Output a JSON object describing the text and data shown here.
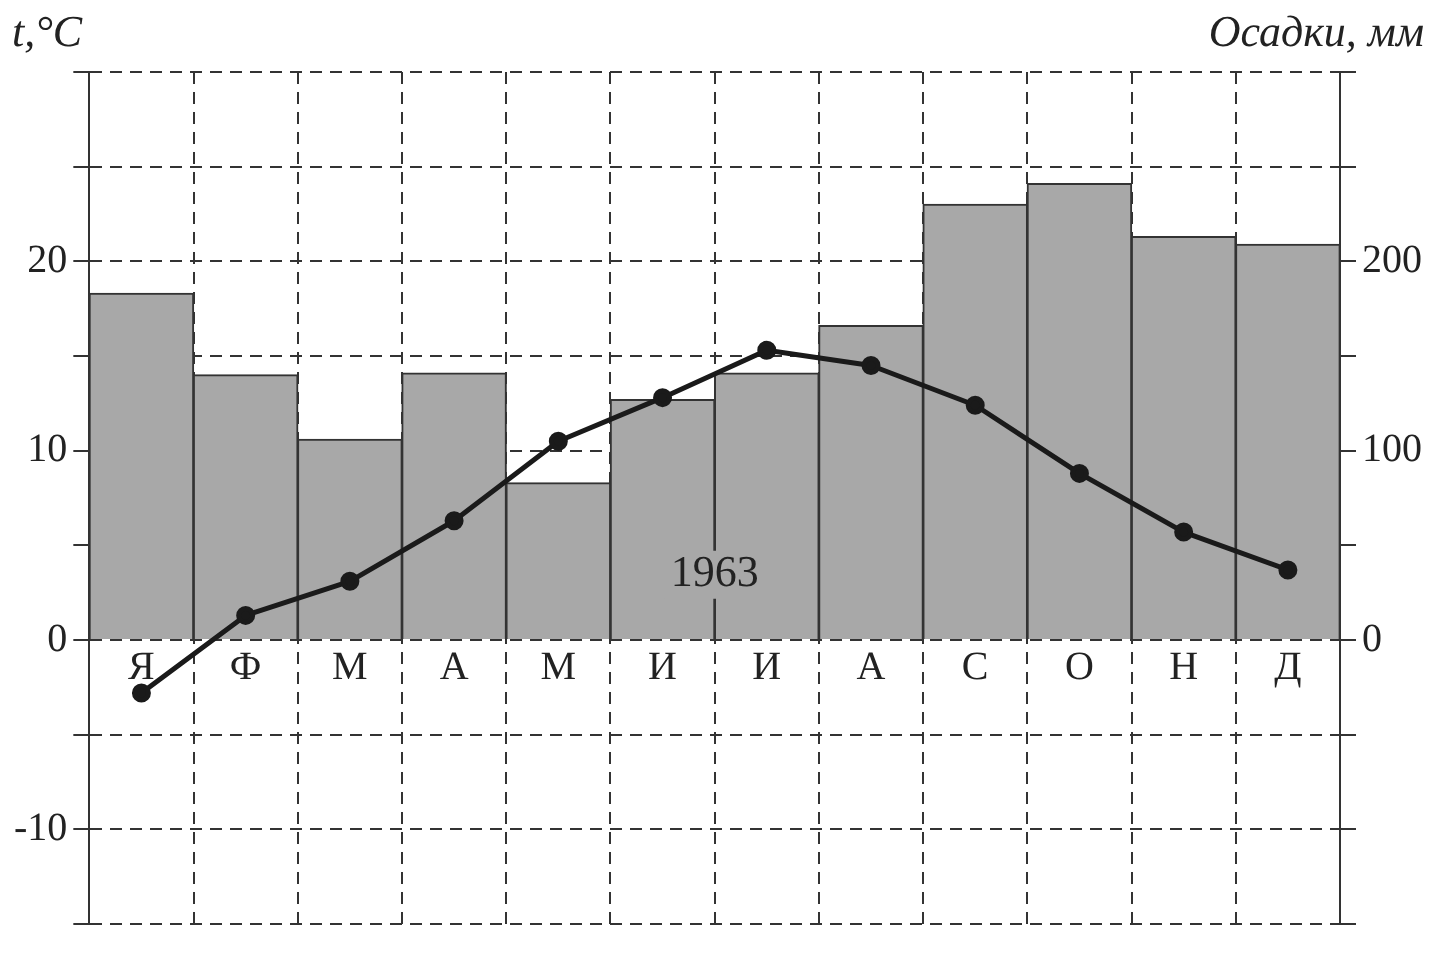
{
  "chart_data": {
    "type": "bar",
    "ylabel": "t,°C",
    "y2label": "Осадки, мм",
    "annotations": [
      "1963"
    ],
    "categories": [
      "Я",
      "Ф",
      "М",
      "А",
      "М",
      "И",
      "И",
      "А",
      "С",
      "О",
      "Н",
      "Д"
    ],
    "series": [
      {
        "axis": "y2",
        "color": "#a8a8a8",
        "values": [
          183,
          140,
          106,
          141,
          83,
          127,
          141,
          166,
          230,
          241,
          213,
          209
        ]
      },
      {
        "type": "line",
        "color": "#1a1a1a",
        "marker": "circle",
        "values": [
          -2.8,
          1.3,
          3.1,
          6.3,
          10.5,
          12.8,
          15.3,
          14.5,
          12.4,
          8.8,
          5.7,
          3.7
        ]
      }
    ],
    "ylim": [
      -15,
      30
    ],
    "yticks": [
      {
        "value": -15,
        "label": null
      },
      -10,
      {
        "value": -5,
        "label": null
      },
      0,
      {
        "value": 5,
        "label": null
      },
      10,
      {
        "value": 15,
        "label": null
      },
      20,
      {
        "value": 25,
        "label": null
      },
      {
        "value": 30,
        "label": null
      }
    ],
    "y2lim": [
      -150,
      300
    ],
    "y2ticks": [
      {
        "value": -150,
        "label": null
      },
      {
        "value": -100,
        "label": null
      },
      {
        "value": -50,
        "label": null
      },
      0,
      {
        "value": 50,
        "label": null
      },
      100,
      {
        "value": 150,
        "label": null
      },
      200,
      {
        "value": 250,
        "label": null
      },
      {
        "value": 300,
        "label": null
      }
    ],
    "grid": true,
    "legend": false
  }
}
